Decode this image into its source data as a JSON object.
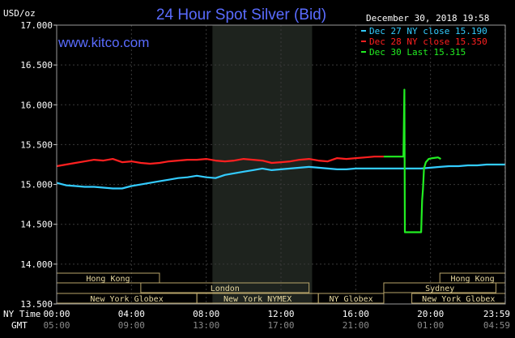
{
  "chart_data": {
    "type": "line",
    "title": "24 Hour Spot Silver (Bid)",
    "ylabel": "USD/oz",
    "brand": "www.kitco.com",
    "timestamp": "December 30, 2018 19:58",
    "ylim": [
      13.5,
      17.0
    ],
    "yticks": [
      "17.000",
      "16.500",
      "16.000",
      "15.500",
      "15.000",
      "14.500",
      "14.000",
      "13.500"
    ],
    "ytick_values": [
      17.0,
      16.5,
      16.0,
      15.5,
      15.0,
      14.5,
      14.0,
      13.5
    ],
    "x_row_labels": [
      "NY Time",
      "GMT"
    ],
    "xticks_ny": [
      "00:00",
      "04:00",
      "08:00",
      "12:00",
      "16:00",
      "20:00",
      "23:59"
    ],
    "xticks_gmt": [
      "05:00",
      "09:00",
      "13:00",
      "17:00",
      "21:00",
      "01:00",
      "04:59"
    ],
    "xtick_hours": [
      0,
      4,
      8,
      12,
      16,
      20,
      23.983
    ],
    "shaded_hours": [
      8.333,
      13.667
    ],
    "legend": [
      {
        "label": "Dec 27 NY close 15.190",
        "color": "#33ccff"
      },
      {
        "label": "Dec 28 NY close 15.350",
        "color": "#ff2020"
      },
      {
        "label": "Dec 30 Last 15.315",
        "color": "#22ee22"
      }
    ],
    "series": [
      {
        "name": "Dec 27",
        "color": "#33ccff",
        "x": [
          0,
          0.5,
          1,
          1.5,
          2,
          2.5,
          3,
          3.5,
          4,
          4.5,
          5,
          5.5,
          6,
          6.5,
          7,
          7.5,
          8,
          8.5,
          9,
          9.5,
          10,
          10.5,
          11,
          11.5,
          12,
          12.5,
          13,
          13.5,
          14,
          14.5,
          15,
          15.5,
          16,
          16.5,
          17,
          17.5,
          18,
          18.5,
          19,
          19.5,
          20,
          20.5,
          21,
          21.5,
          22,
          22.5,
          23,
          23.5,
          23.983
        ],
        "values": [
          15.02,
          14.99,
          14.98,
          14.97,
          14.97,
          14.96,
          14.95,
          14.95,
          14.98,
          15.0,
          15.02,
          15.04,
          15.06,
          15.08,
          15.09,
          15.11,
          15.09,
          15.08,
          15.12,
          15.14,
          15.16,
          15.18,
          15.2,
          15.18,
          15.19,
          15.2,
          15.21,
          15.22,
          15.21,
          15.2,
          15.19,
          15.19,
          15.2,
          15.2,
          15.2,
          15.2,
          15.2,
          15.2,
          15.2,
          15.2,
          15.21,
          15.22,
          15.23,
          15.23,
          15.24,
          15.24,
          15.25,
          15.25,
          15.25
        ]
      },
      {
        "name": "Dec 28",
        "color": "#ff2020",
        "x": [
          0,
          0.5,
          1,
          1.5,
          2,
          2.5,
          3,
          3.5,
          4,
          4.5,
          5,
          5.5,
          6,
          6.5,
          7,
          7.5,
          8,
          8.5,
          9,
          9.5,
          10,
          10.5,
          11,
          11.5,
          12,
          12.5,
          13,
          13.5,
          14,
          14.5,
          15,
          15.5,
          16,
          16.5,
          17,
          17.5
        ],
        "values": [
          15.23,
          15.25,
          15.27,
          15.29,
          15.31,
          15.3,
          15.32,
          15.28,
          15.29,
          15.27,
          15.26,
          15.27,
          15.29,
          15.3,
          15.31,
          15.31,
          15.32,
          15.3,
          15.29,
          15.3,
          15.32,
          15.31,
          15.3,
          15.27,
          15.28,
          15.29,
          15.31,
          15.32,
          15.3,
          15.29,
          15.33,
          15.32,
          15.33,
          15.34,
          15.35,
          15.35
        ]
      },
      {
        "name": "Dec 30",
        "color": "#22ee22",
        "x": [
          17.5,
          18.5,
          18.55,
          18.6,
          18.63,
          19.0,
          19.5,
          19.55,
          19.6,
          19.65,
          19.75,
          19.9,
          20.1,
          20.4,
          20.55
        ],
        "values": [
          15.35,
          15.35,
          15.35,
          16.19,
          14.4,
          14.4,
          14.4,
          14.8,
          14.95,
          15.2,
          15.28,
          15.32,
          15.33,
          15.34,
          15.32
        ]
      }
    ]
  },
  "markets": [
    {
      "name": "Hong Kong",
      "row": 0,
      "start": 0,
      "end": 5.5
    },
    {
      "name": "Hong Kong",
      "row": 0,
      "start": 20.5,
      "end": 24
    },
    {
      "name": "London",
      "row": 1,
      "start": 4.5,
      "end": 13.5
    },
    {
      "name": "Sydney",
      "row": 1,
      "start": 17.5,
      "end": 23.5
    },
    {
      "name": "New York Globex",
      "row": 2,
      "start": 0,
      "end": 7.5
    },
    {
      "name": "New York NYMEX",
      "row": 2,
      "start": 7.5,
      "end": 14
    },
    {
      "name": "NY Globex",
      "row": 2,
      "start": 14,
      "end": 17.5
    },
    {
      "name": "New York Globex",
      "row": 2,
      "start": 19,
      "end": 24
    }
  ]
}
